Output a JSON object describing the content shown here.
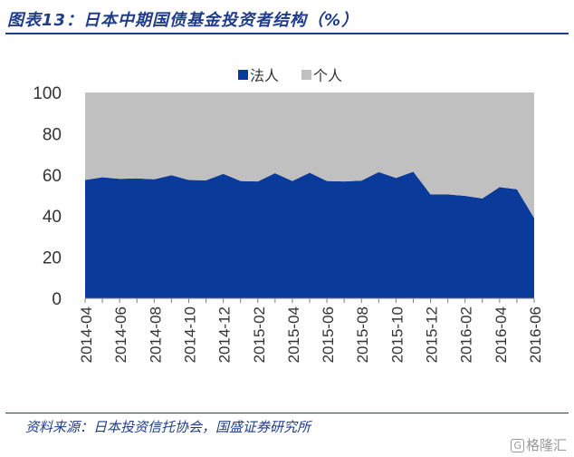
{
  "header": {
    "title": "图表13：日本中期国债基金投资者结构（%）"
  },
  "footer": {
    "source": "资料来源：日本投资信托协会，国盛证券研究所",
    "watermark_badge": "G",
    "watermark_text": "格隆汇"
  },
  "chart_data": {
    "type": "area",
    "stacked": true,
    "percent_stacked": true,
    "categories": [
      "2014-04",
      "2014-05",
      "2014-06",
      "2014-07",
      "2014-08",
      "2014-09",
      "2014-10",
      "2014-11",
      "2014-12",
      "2015-01",
      "2015-02",
      "2015-03",
      "2015-04",
      "2015-05",
      "2015-06",
      "2015-07",
      "2015-08",
      "2015-09",
      "2015-10",
      "2015-11",
      "2015-12",
      "2016-01",
      "2016-02",
      "2016-03",
      "2016-04",
      "2016-05",
      "2016-06"
    ],
    "tick_labels": [
      "2014-04",
      "2014-06",
      "2014-08",
      "2014-10",
      "2014-12",
      "2015-02",
      "2015-04",
      "2015-06",
      "2015-08",
      "2015-10",
      "2015-12",
      "2016-02",
      "2016-04",
      "2016-06"
    ],
    "series": [
      {
        "name": "法人",
        "color": "#0a3a9a",
        "values": [
          57.5,
          58.8,
          58,
          58.3,
          57.8,
          59.8,
          57.5,
          57.3,
          60.5,
          57,
          56.8,
          60.8,
          57,
          61,
          57,
          56.8,
          57.2,
          61.3,
          58.5,
          61.5,
          50.5,
          50.5,
          49.8,
          48.5,
          54,
          53,
          39
        ]
      },
      {
        "name": "个人",
        "color": "#c0c0c0",
        "values": [
          42.5,
          41.2,
          42,
          41.7,
          42.2,
          40.2,
          42.5,
          42.7,
          39.5,
          43,
          43.2,
          39.2,
          43,
          39,
          43,
          43.2,
          42.8,
          38.7,
          41.5,
          38.5,
          49.5,
          49.5,
          50.2,
          51.5,
          46,
          47,
          61
        ]
      }
    ],
    "ylim": [
      0,
      100
    ],
    "yticks": [
      0,
      20,
      40,
      60,
      80,
      100
    ],
    "xlabel": "",
    "ylabel": "",
    "legend_position": "top-center",
    "grid": false
  }
}
